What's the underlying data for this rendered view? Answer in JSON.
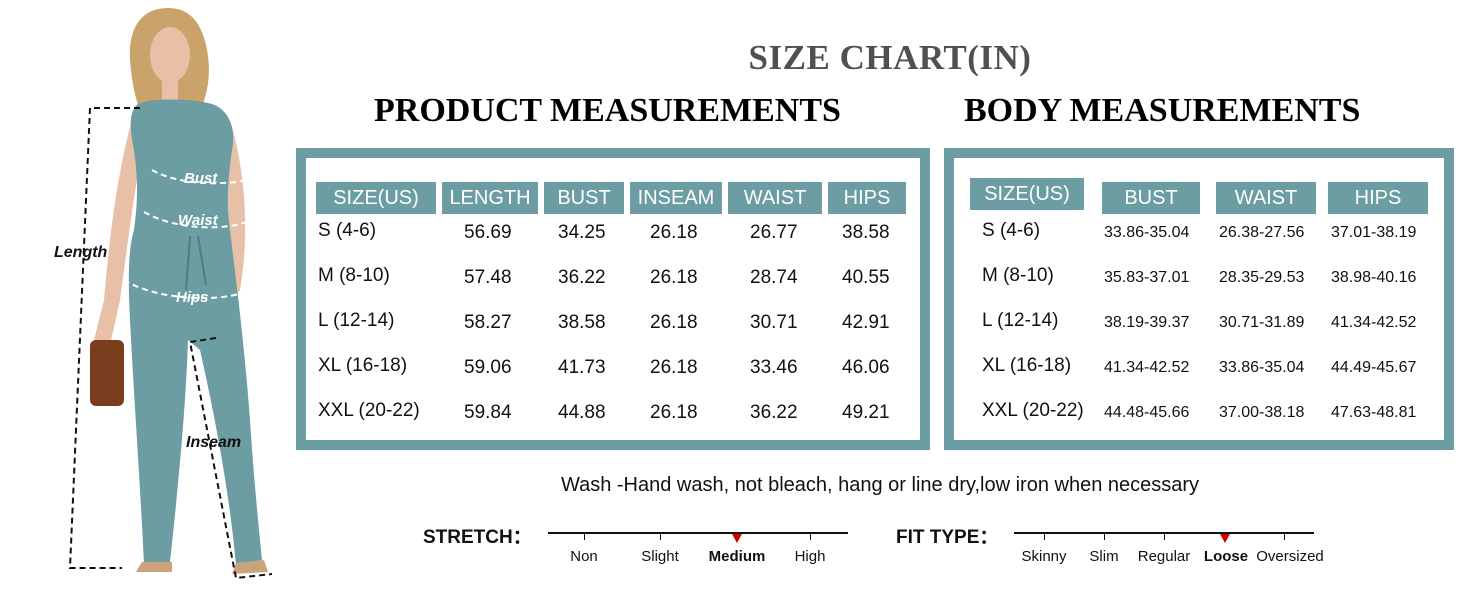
{
  "model": {
    "labels": {
      "bust": "Bust",
      "waist": "Waist",
      "hips": "Hips",
      "length": "Length",
      "inseam": "Inseam"
    },
    "colors": {
      "garment": "#6b9da3",
      "hair": "#c9a36a",
      "skin": "#e8c0a8",
      "bag": "#7a3e1f"
    }
  },
  "title": "SIZE CHART(IN)",
  "product": {
    "title": "PRODUCT MEASUREMENTS",
    "headers": [
      "SIZE(US)",
      "LENGTH",
      "BUST",
      "INSEAM",
      "WAIST",
      "HIPS"
    ],
    "rows": [
      [
        "S  (4-6)",
        "56.69",
        "34.25",
        "26.18",
        "26.77",
        "38.58"
      ],
      [
        "M  (8-10)",
        "57.48",
        "36.22",
        "26.18",
        "28.74",
        "40.55"
      ],
      [
        "L    (12-14)",
        "58.27",
        "38.58",
        "26.18",
        "30.71",
        "42.91"
      ],
      [
        "XL (16-18)",
        "59.06",
        "41.73",
        "26.18",
        "33.46",
        "46.06"
      ],
      [
        "XXL (20-22)",
        "59.84",
        "44.88",
        "26.18",
        "36.22",
        "49.21"
      ]
    ]
  },
  "body": {
    "title": "BODY MEASUREMENTS",
    "headers": [
      "SIZE(US)",
      "BUST",
      "WAIST",
      "HIPS"
    ],
    "rows": [
      [
        "S    (4-6)",
        "33.86-35.04",
        "26.38-27.56",
        "37.01-38.19"
      ],
      [
        "M  (8-10)",
        "35.83-37.01",
        "28.35-29.53",
        "38.98-40.16"
      ],
      [
        "L    (12-14)",
        "38.19-39.37",
        "30.71-31.89",
        "41.34-42.52"
      ],
      [
        "XL (16-18)",
        "41.34-42.52",
        "33.86-35.04",
        "44.49-45.67"
      ],
      [
        "XXL (20-22)",
        "44.48-45.66",
        "37.00-38.18",
        "47.63-48.81"
      ]
    ]
  },
  "wash": "Wash -Hand wash, not bleach, hang or line dry,low iron when necessary",
  "stretch": {
    "label": "STRETCH：",
    "options": [
      "Non",
      "Slight",
      "Medium",
      "High"
    ],
    "selected": "Medium"
  },
  "fit": {
    "label": "FIT TYPE：",
    "options": [
      "Skinny",
      "Slim",
      "Regular",
      "Loose",
      "Oversized"
    ],
    "selected": "Loose"
  },
  "colors": {
    "accent": "#6b9da3",
    "marker": "#d00000",
    "title_gray": "#505050"
  }
}
